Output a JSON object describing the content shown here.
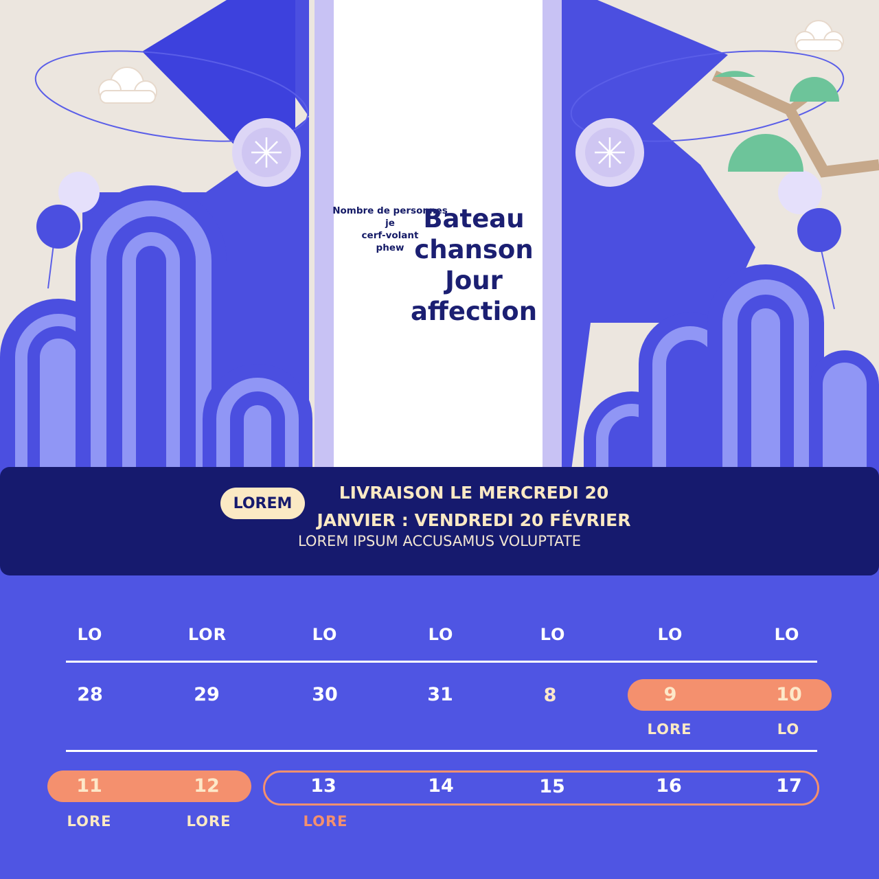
{
  "illustration": {
    "small_words": [
      "Nombre de personnes",
      "je",
      "cerf-volant",
      "phew"
    ],
    "big_words": [
      "Bateau",
      "chanson",
      "Jour",
      "affection"
    ]
  },
  "banner": {
    "pill": "LOREM",
    "headline_1": "LIVRAISON LE MERCREDI 20",
    "headline_2": "JANVIER : VENDREDI 20 FÉVRIER",
    "subline": "LOREM IPSUM ACCUSAMUS VOLUPTATE"
  },
  "calendar": {
    "weekdays": [
      "LO",
      "LOR",
      "LO",
      "LO",
      "LO",
      "LO",
      "LO"
    ],
    "week1": [
      "28",
      "29",
      "30",
      "31",
      "8",
      "9",
      "10"
    ],
    "week1_tags": [
      "LORE",
      "LO"
    ],
    "week2": [
      "11",
      "12",
      "13",
      "14",
      "15",
      "16",
      "17"
    ],
    "week2_tags": [
      "LORE",
      "LORE",
      "LORE"
    ]
  },
  "colors": {
    "background": "#4f55e3",
    "banner": "#161a6e",
    "highlight": "#f4906e",
    "cream": "#fbe9c4",
    "paper": "#ece6df"
  }
}
